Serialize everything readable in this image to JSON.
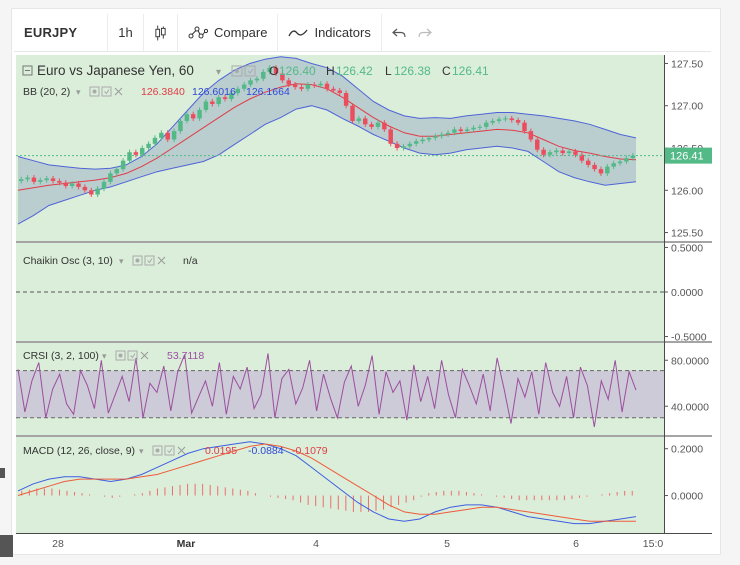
{
  "toolbar": {
    "symbol": "EURJPY",
    "interval": "1h",
    "compare_label": "Compare",
    "indicators_label": "Indicators"
  },
  "colors": {
    "pane_bg": "#dbeeda",
    "up_candle": "#53b987",
    "down_candle": "#eb4d5c",
    "bb_band": "#4f63d8",
    "bb_basis": "#e03c46",
    "crsi_line": "#9c4e9f",
    "macd_line": "#3d5ee0",
    "signal_line": "#ef5b3a"
  },
  "main_pane": {
    "title": "Euro vs Japanese Yen, 60",
    "ohlc": {
      "o_label": "O",
      "o": "126.40",
      "h_label": "H",
      "h": "126.42",
      "l_label": "L",
      "l": "126.38",
      "c_label": "C",
      "c": "126.41"
    },
    "bb_label": "BB (20, 2)",
    "bb_values": [
      "126.3840",
      "126.6016",
      "126.1664"
    ],
    "last_price": "126.41",
    "price_axis": [
      "127.50",
      "127.00",
      "126.50",
      "126.00",
      "125.50"
    ]
  },
  "chaikin_pane": {
    "label": "Chaikin Osc (3, 10)",
    "value": "n/a",
    "axis": [
      "0.5000",
      "0.0000",
      "-0.5000"
    ]
  },
  "crsi_pane": {
    "label": "CRSI (3, 2, 100)",
    "value": "53.7118",
    "axis": [
      "80.0000",
      "40.0000"
    ]
  },
  "macd_pane": {
    "label": "MACD (12, 26, close, 9)",
    "values": [
      "0.0195",
      "-0.0884",
      "-0.1079"
    ],
    "axis": [
      "0.2000",
      "0.0000"
    ]
  },
  "time_axis": [
    "28",
    "Mar",
    "4",
    "5",
    "6",
    "15:0"
  ],
  "chart_data": {
    "type": "line",
    "x_labels": [
      "28",
      "Mar",
      "4",
      "5",
      "6",
      "15:0"
    ],
    "price": {
      "ylim": [
        125.4,
        127.6
      ],
      "close": [
        126.13,
        126.15,
        126.1,
        126.12,
        126.14,
        126.11,
        126.09,
        126.05,
        126.08,
        126.04,
        126.0,
        125.95,
        126.02,
        126.1,
        126.2,
        126.25,
        126.35,
        126.45,
        126.42,
        126.5,
        126.55,
        126.62,
        126.68,
        126.6,
        126.7,
        126.82,
        126.9,
        126.85,
        126.95,
        127.05,
        127.02,
        127.1,
        127.08,
        127.15,
        127.2,
        127.25,
        127.3,
        127.32,
        127.4,
        127.45,
        127.38,
        127.3,
        127.25,
        127.22,
        127.2,
        127.25,
        127.24,
        127.26,
        127.2,
        127.18,
        127.15,
        127.0,
        126.82,
        126.85,
        126.78,
        126.75,
        126.8,
        126.72,
        126.55,
        126.5,
        126.52,
        126.55,
        126.58,
        126.6,
        126.62,
        126.64,
        126.66,
        126.68,
        126.72,
        126.7,
        126.72,
        126.74,
        126.75,
        126.8,
        126.82,
        126.84,
        126.85,
        126.83,
        126.8,
        126.7,
        126.6,
        126.48,
        126.42,
        126.45,
        126.47,
        126.44,
        126.46,
        126.42,
        126.35,
        126.3,
        126.25,
        126.2,
        126.28,
        126.32,
        126.34,
        126.38,
        126.41
      ],
      "bb_upper": [
        126.4,
        126.35,
        126.3,
        126.28,
        126.26,
        126.25,
        126.26,
        126.3,
        126.4,
        126.55,
        126.75,
        126.95,
        127.15,
        127.3,
        127.42,
        127.5,
        127.55,
        127.58,
        127.56,
        127.5,
        127.45,
        127.35,
        127.2,
        127.05,
        126.95,
        126.88,
        126.85,
        126.86,
        126.85,
        126.88,
        126.9,
        126.92,
        126.92,
        126.9,
        126.88,
        126.85,
        126.82,
        126.78,
        126.72,
        126.66,
        126.62
      ],
      "bb_basis": [
        126.0,
        126.03,
        126.06,
        126.08,
        126.1,
        126.12,
        126.15,
        126.2,
        126.28,
        126.38,
        126.5,
        126.62,
        126.74,
        126.86,
        126.98,
        127.08,
        127.16,
        127.22,
        127.26,
        127.25,
        127.2,
        127.1,
        126.98,
        126.86,
        126.76,
        126.68,
        126.64,
        126.64,
        126.66,
        126.68,
        126.7,
        126.72,
        126.71,
        126.68,
        126.6,
        126.52,
        126.47,
        126.44,
        126.4,
        126.37,
        126.36
      ],
      "bb_lower": [
        125.6,
        125.7,
        125.82,
        125.88,
        125.94,
        126.0,
        126.04,
        126.1,
        126.16,
        126.22,
        126.26,
        126.3,
        126.34,
        126.42,
        126.54,
        126.66,
        126.78,
        126.86,
        126.96,
        127.0,
        126.95,
        126.85,
        126.76,
        126.66,
        126.58,
        126.5,
        126.44,
        126.42,
        126.44,
        126.48,
        126.5,
        126.52,
        126.5,
        126.46,
        126.34,
        126.22,
        126.15,
        126.1,
        126.06,
        126.08,
        126.1
      ]
    },
    "chaikin": {
      "ylim": [
        -0.55,
        0.55
      ],
      "values": []
    },
    "crsi": {
      "ylim": [
        15,
        95
      ],
      "band": [
        71,
        30
      ],
      "values": [
        72,
        35,
        62,
        78,
        30,
        55,
        68,
        42,
        33,
        71,
        58,
        38,
        80,
        34,
        50,
        66,
        44,
        82,
        30,
        60,
        52,
        75,
        36,
        70,
        85,
        34,
        48,
        62,
        40,
        78,
        33,
        66,
        55,
        74,
        38,
        50,
        86,
        30,
        64,
        72,
        42,
        56,
        80,
        36,
        68,
        47,
        30,
        61,
        75,
        40,
        58,
        84,
        33,
        70,
        52,
        62,
        28,
        76,
        44,
        66,
        38,
        80,
        50,
        30,
        72,
        58,
        42,
        68,
        36,
        82,
        55,
        25,
        64,
        48,
        70,
        33,
        78,
        52,
        40,
        66,
        30,
        74,
        58,
        22,
        62,
        46,
        80,
        35,
        70,
        54
      ]
    },
    "macd": {
      "ylim": [
        -0.16,
        0.25
      ],
      "macd": [
        0.02,
        0.05,
        0.07,
        0.08,
        0.08,
        0.07,
        0.06,
        0.07,
        0.09,
        0.12,
        0.15,
        0.18,
        0.2,
        0.21,
        0.22,
        0.23,
        0.22,
        0.2,
        0.17,
        0.12,
        0.07,
        0.02,
        -0.03,
        -0.07,
        -0.1,
        -0.11,
        -0.1,
        -0.07,
        -0.05,
        -0.04,
        -0.04,
        -0.05,
        -0.07,
        -0.09,
        -0.1,
        -0.11,
        -0.12,
        -0.12,
        -0.11,
        -0.1,
        -0.09
      ],
      "signal": [
        0.0,
        0.02,
        0.04,
        0.06,
        0.07,
        0.07,
        0.07,
        0.07,
        0.08,
        0.09,
        0.11,
        0.13,
        0.15,
        0.17,
        0.19,
        0.21,
        0.22,
        0.21,
        0.19,
        0.16,
        0.12,
        0.08,
        0.04,
        0.0,
        -0.04,
        -0.07,
        -0.08,
        -0.08,
        -0.07,
        -0.06,
        -0.05,
        -0.05,
        -0.06,
        -0.07,
        -0.08,
        -0.09,
        -0.1,
        -0.11,
        -0.11,
        -0.11,
        -0.11
      ],
      "histogram": [
        0.02,
        0.03,
        0.03,
        0.02,
        0.01,
        0.0,
        -0.01,
        0.0,
        0.01,
        0.03,
        0.04,
        0.05,
        0.05,
        0.04,
        0.03,
        0.02,
        0.0,
        -0.01,
        -0.02,
        -0.04,
        -0.05,
        -0.06,
        -0.07,
        -0.07,
        -0.06,
        -0.04,
        -0.02,
        0.01,
        0.02,
        0.02,
        0.01,
        0.0,
        -0.01,
        -0.02,
        -0.02,
        -0.02,
        -0.02,
        -0.01,
        0.0,
        0.01,
        0.02
      ]
    }
  }
}
